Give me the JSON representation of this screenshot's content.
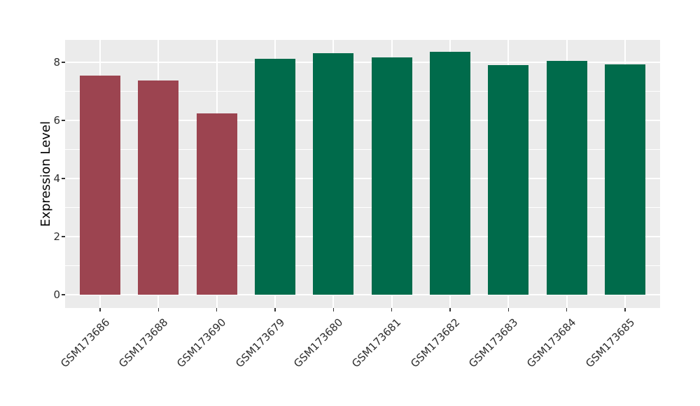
{
  "chart_data": {
    "type": "bar",
    "title": "",
    "xlabel": "",
    "ylabel": "Expression Level",
    "categories": [
      "GSM173686",
      "GSM173688",
      "GSM173690",
      "GSM173679",
      "GSM173680",
      "GSM173681",
      "GSM173682",
      "GSM173683",
      "GSM173684",
      "GSM173685"
    ],
    "values": [
      7.55,
      7.38,
      6.25,
      8.13,
      8.32,
      8.19,
      8.37,
      7.91,
      8.07,
      7.94
    ],
    "bar_colors": [
      "#9C4450",
      "#9C4450",
      "#9C4450",
      "#006B4B",
      "#006B4B",
      "#006B4B",
      "#006B4B",
      "#006B4B",
      "#006B4B",
      "#006B4B"
    ],
    "group_palette": {
      "left_group_red": "#9C4450",
      "right_group_green": "#006B4B"
    },
    "yticks_major": [
      0,
      2,
      4,
      6,
      8
    ],
    "yticks_minor": [
      1,
      3,
      5,
      7
    ],
    "ylim": [
      -0.46,
      8.78
    ],
    "bar_width_fraction": 0.7,
    "x_tick_rotation_deg": 45,
    "grid": true,
    "legend_position": "none",
    "panel_bg": "#EBEBEB",
    "grid_color": "#FFFFFF",
    "tick_mark_color": "#333333",
    "tick_text_color": "#2E2E2E"
  }
}
